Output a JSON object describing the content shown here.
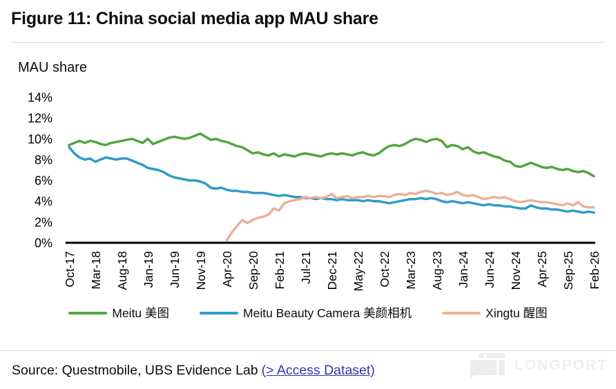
{
  "figure": {
    "title": "Figure 11: China social media app MAU share"
  },
  "source": {
    "prefix": "Source: Questmobile, UBS Evidence Lab",
    "link_label": "(> Access Dataset)"
  },
  "watermark": {
    "text": "LONGPORT"
  },
  "colors": {
    "meitu_green": "#55a43c",
    "beauty_camera_blue": "#2e9bc8",
    "xingtu_peach": "#e9b199",
    "axis_black": "#000000",
    "link_blue": "#3333ab",
    "divider_gray": "#d9d9d9",
    "watermark_gray": "#efefef"
  },
  "chart_data": {
    "type": "line",
    "title": "Figure 11: China social media app MAU share",
    "xlabel": "",
    "ylabel": "MAU share",
    "ylim": [
      0,
      14
    ],
    "y_ticks": [
      0,
      2,
      4,
      6,
      8,
      10,
      12,
      14
    ],
    "ytick_suffix": "%",
    "grid": false,
    "legend_position": "bottom",
    "x_tick_labels": [
      "Oct-17",
      "Mar-18",
      "Aug-18",
      "Jan-19",
      "Jun-19",
      "Nov-19",
      "Apr-20",
      "Sep-20",
      "Feb-21",
      "Jul-21",
      "Dec-21",
      "May-22",
      "Oct-22",
      "Mar-23",
      "Aug-23",
      "Jan-24",
      "Jun-24",
      "Nov-24",
      "Apr-25",
      "Sep-25",
      "Feb-26"
    ],
    "months_per_tick": 5,
    "monthly_point_count": 101,
    "series": [
      {
        "name": "Meitu 美图",
        "key": "meitu",
        "color": "#55a43c",
        "start_index": 0,
        "values": [
          9.4,
          9.6,
          9.8,
          9.6,
          9.8,
          9.7,
          9.5,
          9.4,
          9.6,
          9.7,
          9.8,
          9.9,
          10.0,
          9.8,
          9.6,
          10.0,
          9.5,
          9.7,
          9.9,
          10.1,
          10.2,
          10.1,
          10.0,
          10.1,
          10.3,
          10.5,
          10.2,
          9.9,
          10.0,
          9.8,
          9.7,
          9.5,
          9.3,
          9.2,
          8.9,
          8.6,
          8.7,
          8.5,
          8.4,
          8.6,
          8.3,
          8.5,
          8.4,
          8.3,
          8.5,
          8.6,
          8.5,
          8.4,
          8.3,
          8.5,
          8.6,
          8.5,
          8.6,
          8.5,
          8.4,
          8.6,
          8.7,
          8.5,
          8.4,
          8.6,
          9.0,
          9.3,
          9.4,
          9.3,
          9.5,
          9.8,
          10.0,
          9.9,
          9.7,
          9.9,
          10.0,
          9.8,
          9.2,
          9.4,
          9.3,
          9.0,
          9.2,
          8.8,
          8.6,
          8.7,
          8.5,
          8.3,
          8.2,
          7.9,
          7.8,
          7.4,
          7.3,
          7.5,
          7.7,
          7.5,
          7.3,
          7.2,
          7.3,
          7.1,
          7.0,
          7.1,
          6.9,
          6.8,
          6.9,
          6.7,
          6.4
        ]
      },
      {
        "name": "Meitu Beauty Camera 美颜相机",
        "key": "beauty-camera",
        "color": "#2e9bc8",
        "start_index": 0,
        "values": [
          9.2,
          8.6,
          8.2,
          8.0,
          8.1,
          7.8,
          8.0,
          8.2,
          8.1,
          8.0,
          8.1,
          8.1,
          7.9,
          7.7,
          7.5,
          7.2,
          7.1,
          7.0,
          6.8,
          6.5,
          6.3,
          6.2,
          6.1,
          6.0,
          6.0,
          5.9,
          5.7,
          5.3,
          5.2,
          5.3,
          5.1,
          5.0,
          5.0,
          4.9,
          4.9,
          4.8,
          4.8,
          4.8,
          4.7,
          4.6,
          4.5,
          4.6,
          4.5,
          4.4,
          4.4,
          4.3,
          4.3,
          4.2,
          4.3,
          4.2,
          4.2,
          4.1,
          4.2,
          4.1,
          4.1,
          4.1,
          4.0,
          4.1,
          4.0,
          4.0,
          3.9,
          3.8,
          3.9,
          4.0,
          4.1,
          4.2,
          4.2,
          4.3,
          4.2,
          4.3,
          4.2,
          4.0,
          3.9,
          4.0,
          3.9,
          3.8,
          3.9,
          3.8,
          3.7,
          3.6,
          3.7,
          3.6,
          3.6,
          3.5,
          3.5,
          3.4,
          3.3,
          3.3,
          3.6,
          3.4,
          3.3,
          3.3,
          3.2,
          3.2,
          3.1,
          3.0,
          3.1,
          3.0,
          2.9,
          3.0,
          2.9
        ]
      },
      {
        "name": "Xingtu 醒图",
        "key": "xingtu",
        "color": "#e9b199",
        "start_index": 30,
        "values": [
          0.2,
          1.0,
          1.6,
          2.2,
          1.9,
          2.2,
          2.4,
          2.5,
          2.7,
          3.3,
          3.1,
          3.8,
          4.0,
          4.1,
          4.2,
          4.4,
          4.3,
          4.4,
          4.3,
          4.4,
          4.7,
          4.3,
          4.4,
          4.5,
          4.3,
          4.4,
          4.4,
          4.5,
          4.4,
          4.5,
          4.5,
          4.4,
          4.6,
          4.7,
          4.6,
          4.8,
          4.7,
          4.9,
          5.0,
          4.9,
          4.7,
          4.8,
          4.6,
          4.7,
          4.9,
          4.6,
          4.5,
          4.6,
          4.4,
          4.2,
          4.3,
          4.4,
          4.3,
          4.4,
          4.2,
          4.0,
          3.9,
          4.0,
          4.1,
          4.0,
          3.9,
          3.9,
          3.8,
          3.7,
          3.6,
          3.8,
          3.6,
          3.9,
          3.5,
          3.4,
          3.4
        ]
      }
    ]
  }
}
